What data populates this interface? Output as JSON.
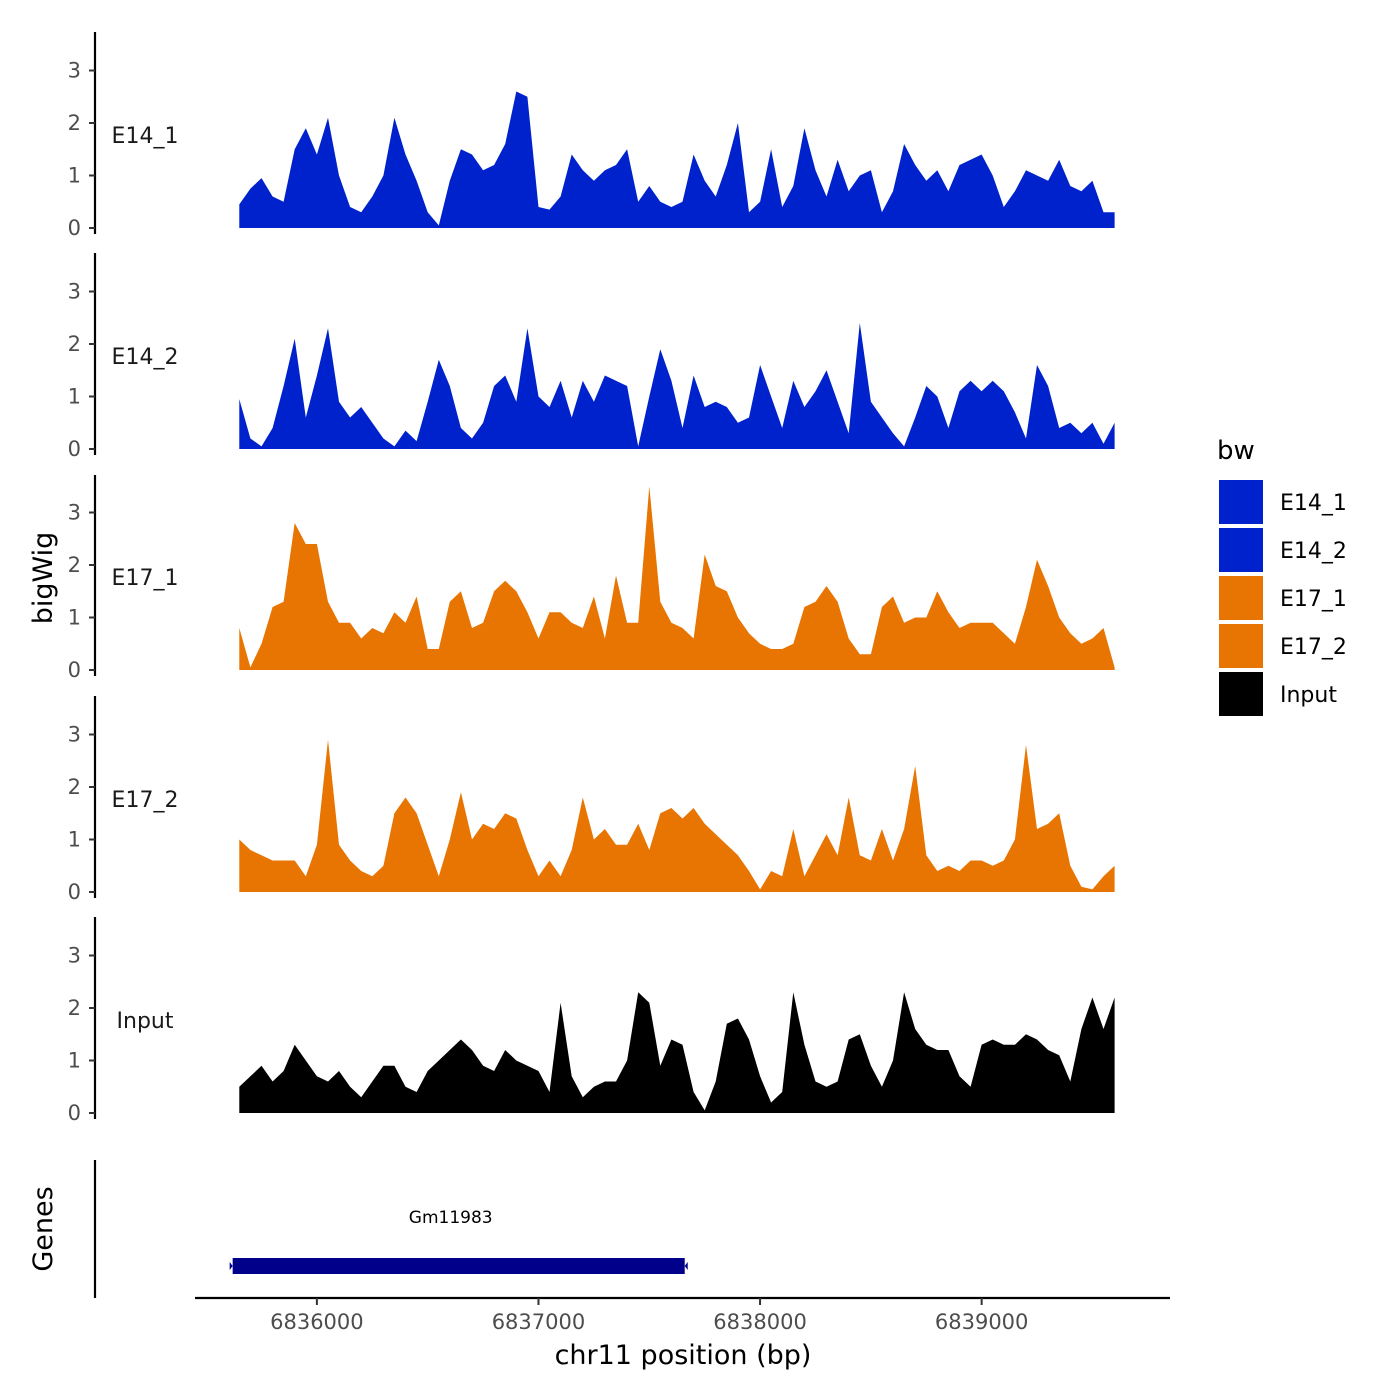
{
  "chart_data": {
    "type": "area",
    "ylabel": "bigWig",
    "xlabel": "chr11 position (bp)",
    "xlim": [
      6835450,
      6839850
    ],
    "ylim": [
      0,
      3.6
    ],
    "y_ticks": [
      0,
      1,
      2,
      3
    ],
    "x_ticks": [
      6836000,
      6837000,
      6838000,
      6839000
    ],
    "x_tick_labels": [
      "6836000",
      "6837000",
      "6838000",
      "6839000"
    ],
    "legend": {
      "title": "bw",
      "entries": [
        {
          "label": "E14_1",
          "color": "#0022cc"
        },
        {
          "label": "E14_2",
          "color": "#0022cc"
        },
        {
          "label": "E17_1",
          "color": "#e87502"
        },
        {
          "label": "E17_2",
          "color": "#e87502"
        },
        {
          "label": "Input",
          "color": "#000000"
        }
      ]
    },
    "x": [
      6835650,
      6835700,
      6835750,
      6835800,
      6835850,
      6835900,
      6835950,
      6836000,
      6836050,
      6836100,
      6836150,
      6836200,
      6836250,
      6836300,
      6836350,
      6836400,
      6836450,
      6836500,
      6836550,
      6836600,
      6836650,
      6836700,
      6836750,
      6836800,
      6836850,
      6836900,
      6836950,
      6837000,
      6837050,
      6837100,
      6837150,
      6837200,
      6837250,
      6837300,
      6837350,
      6837400,
      6837450,
      6837500,
      6837550,
      6837600,
      6837650,
      6837700,
      6837750,
      6837800,
      6837850,
      6837900,
      6837950,
      6838000,
      6838050,
      6838100,
      6838150,
      6838200,
      6838250,
      6838300,
      6838350,
      6838400,
      6838450,
      6838500,
      6838550,
      6838600,
      6838650,
      6838700,
      6838750,
      6838800,
      6838850,
      6838900,
      6838950,
      6839000,
      6839050,
      6839100,
      6839150,
      6839200,
      6839250,
      6839300,
      6839350,
      6839400,
      6839450,
      6839500,
      6839550,
      6839600
    ],
    "series": [
      {
        "name": "E14_1",
        "color": "#0022cc",
        "values": [
          0.45,
          0.75,
          0.95,
          0.6,
          0.5,
          1.5,
          1.9,
          1.4,
          2.1,
          1.0,
          0.4,
          0.3,
          0.6,
          1.0,
          2.1,
          1.4,
          0.9,
          0.3,
          0.05,
          0.9,
          1.5,
          1.4,
          1.1,
          1.2,
          1.6,
          2.6,
          2.5,
          0.4,
          0.35,
          0.6,
          1.4,
          1.1,
          0.9,
          1.1,
          1.2,
          1.5,
          0.5,
          0.8,
          0.5,
          0.4,
          0.5,
          1.4,
          0.9,
          0.6,
          1.2,
          2.0,
          0.3,
          0.5,
          1.5,
          0.4,
          0.8,
          1.9,
          1.1,
          0.6,
          1.3,
          0.7,
          1.0,
          1.1,
          0.3,
          0.7,
          1.6,
          1.2,
          0.9,
          1.1,
          0.7,
          1.2,
          1.3,
          1.4,
          1.0,
          0.4,
          0.7,
          1.1,
          1.0,
          0.9,
          1.3,
          0.8,
          0.7,
          0.9,
          0.3,
          0.3
        ]
      },
      {
        "name": "E14_2",
        "color": "#0022cc",
        "values": [
          0.95,
          0.2,
          0.05,
          0.4,
          1.2,
          2.1,
          0.6,
          1.4,
          2.3,
          0.9,
          0.6,
          0.8,
          0.5,
          0.2,
          0.05,
          0.35,
          0.15,
          0.9,
          1.7,
          1.2,
          0.4,
          0.2,
          0.5,
          1.2,
          1.4,
          0.9,
          2.3,
          1.0,
          0.8,
          1.3,
          0.6,
          1.3,
          0.9,
          1.4,
          1.3,
          1.2,
          0.05,
          1.0,
          1.9,
          1.3,
          0.4,
          1.4,
          0.8,
          0.9,
          0.8,
          0.5,
          0.6,
          1.6,
          1.0,
          0.4,
          1.3,
          0.8,
          1.1,
          1.5,
          0.9,
          0.3,
          2.4,
          0.9,
          0.6,
          0.3,
          0.05,
          0.6,
          1.2,
          1.0,
          0.4,
          1.1,
          1.3,
          1.1,
          1.3,
          1.1,
          0.7,
          0.2,
          1.6,
          1.2,
          0.4,
          0.5,
          0.3,
          0.5,
          0.1,
          0.5
        ]
      },
      {
        "name": "E17_1",
        "color": "#e87502",
        "values": [
          0.8,
          0.05,
          0.5,
          1.2,
          1.3,
          2.8,
          2.4,
          2.4,
          1.3,
          0.9,
          0.9,
          0.6,
          0.8,
          0.7,
          1.1,
          0.9,
          1.4,
          0.4,
          0.4,
          1.3,
          1.5,
          0.8,
          0.9,
          1.5,
          1.7,
          1.5,
          1.1,
          0.6,
          1.1,
          1.1,
          0.9,
          0.8,
          1.4,
          0.6,
          1.8,
          0.9,
          0.9,
          3.5,
          1.3,
          0.9,
          0.8,
          0.6,
          2.2,
          1.6,
          1.5,
          1.0,
          0.7,
          0.5,
          0.4,
          0.4,
          0.5,
          1.2,
          1.3,
          1.6,
          1.3,
          0.6,
          0.3,
          0.3,
          1.2,
          1.4,
          0.9,
          1.0,
          1.0,
          1.5,
          1.1,
          0.8,
          0.9,
          0.9,
          0.9,
          0.7,
          0.5,
          1.2,
          2.1,
          1.6,
          1.0,
          0.7,
          0.5,
          0.6,
          0.8,
          0.05
        ]
      },
      {
        "name": "E17_2",
        "color": "#e87502",
        "values": [
          1.0,
          0.8,
          0.7,
          0.6,
          0.6,
          0.6,
          0.3,
          0.9,
          2.9,
          0.9,
          0.6,
          0.4,
          0.3,
          0.5,
          1.5,
          1.8,
          1.5,
          0.9,
          0.3,
          1.0,
          1.9,
          1.0,
          1.3,
          1.2,
          1.5,
          1.4,
          0.8,
          0.3,
          0.6,
          0.3,
          0.8,
          1.8,
          1.0,
          1.2,
          0.9,
          0.9,
          1.3,
          0.8,
          1.5,
          1.6,
          1.4,
          1.6,
          1.3,
          1.1,
          0.9,
          0.7,
          0.4,
          0.05,
          0.4,
          0.3,
          1.2,
          0.3,
          0.7,
          1.1,
          0.7,
          1.8,
          0.7,
          0.6,
          1.2,
          0.6,
          1.2,
          2.4,
          0.7,
          0.4,
          0.5,
          0.4,
          0.6,
          0.6,
          0.5,
          0.6,
          1.0,
          2.8,
          1.2,
          1.3,
          1.5,
          0.5,
          0.1,
          0.05,
          0.3,
          0.5
        ]
      },
      {
        "name": "Input",
        "color": "#000000",
        "values": [
          0.5,
          0.7,
          0.9,
          0.6,
          0.8,
          1.3,
          1.0,
          0.7,
          0.6,
          0.8,
          0.5,
          0.3,
          0.6,
          0.9,
          0.9,
          0.5,
          0.4,
          0.8,
          1.0,
          1.2,
          1.4,
          1.2,
          0.9,
          0.8,
          1.2,
          1.0,
          0.9,
          0.8,
          0.4,
          2.1,
          0.7,
          0.3,
          0.5,
          0.6,
          0.6,
          1.0,
          2.3,
          2.1,
          0.9,
          1.4,
          1.3,
          0.4,
          0.05,
          0.6,
          1.7,
          1.8,
          1.4,
          0.7,
          0.2,
          0.4,
          2.3,
          1.3,
          0.6,
          0.5,
          0.6,
          1.4,
          1.5,
          0.9,
          0.5,
          1.0,
          2.3,
          1.6,
          1.3,
          1.2,
          1.2,
          0.7,
          0.5,
          1.3,
          1.4,
          1.3,
          1.3,
          1.5,
          1.4,
          1.2,
          1.1,
          0.6,
          1.6,
          2.2,
          1.6,
          2.2
        ]
      }
    ],
    "genes": {
      "title": "Genes",
      "items": [
        {
          "name": "Gm11983",
          "start": 6835620,
          "end": 6837660,
          "color": "#00008b"
        }
      ]
    }
  }
}
